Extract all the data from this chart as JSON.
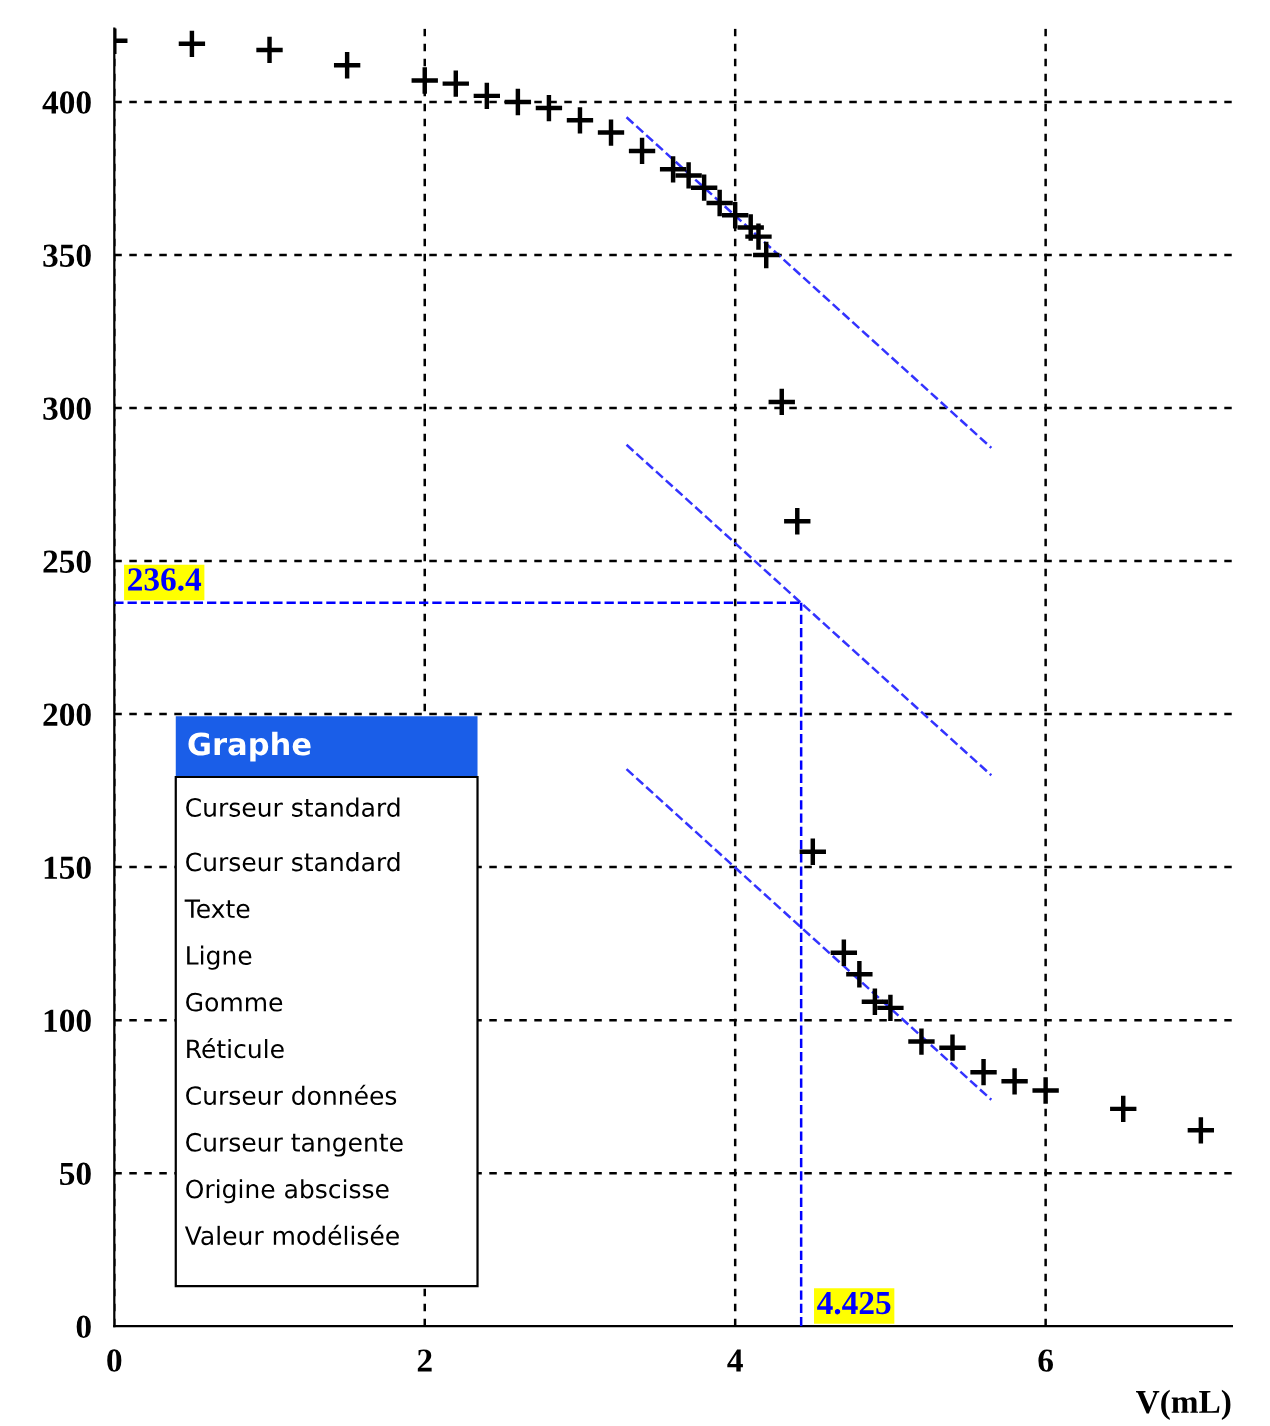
{
  "chart_data": {
    "type": "scatter",
    "xlabel": "V(mL)",
    "series": [
      {
        "color": "#000000",
        "marker": "cross",
        "x": [
          0,
          0.5,
          1,
          1.5,
          2,
          2.2,
          2.4,
          2.6,
          2.8,
          3.0,
          3.2,
          3.4,
          3.6,
          3.7,
          3.8,
          3.9,
          4.0,
          4.1,
          4.15,
          4.2,
          4.3,
          4.4,
          4.5,
          4.7,
          4.8,
          4.9,
          5.0,
          5.2,
          5.4,
          5.6,
          5.8,
          6.0,
          6.5,
          7.0
        ],
        "values": [
          420,
          419,
          417,
          412,
          407,
          406,
          402,
          400,
          398,
          394,
          390,
          384,
          378,
          376,
          372,
          367,
          363,
          359,
          356,
          350,
          302,
          263,
          155,
          122,
          115,
          106,
          104,
          93,
          91,
          83,
          80,
          77,
          71,
          64
        ]
      },
      {
        "type": "line",
        "color": "#3333ff",
        "line_style": "dashed",
        "x": [
          3.3,
          5.65
        ],
        "values": [
          395,
          287
        ]
      },
      {
        "type": "line",
        "color": "#3333ff",
        "line_style": "dashed",
        "x": [
          3.3,
          5.65
        ],
        "values": [
          288,
          180
        ]
      },
      {
        "type": "line",
        "color": "#3333ff",
        "line_style": "dashed",
        "x": [
          3.3,
          5.65
        ],
        "values": [
          182,
          74
        ]
      }
    ],
    "ref_lines": [
      {
        "axis": "y",
        "value": 236.4,
        "label": "236.4",
        "color": "#0000ff",
        "line_style": "dashed"
      },
      {
        "axis": "x",
        "value": 4.425,
        "label": "4.425",
        "color": "#0000ff",
        "line_style": "dashed"
      }
    ],
    "annotations": [
      "Graphe",
      "Curseur standard",
      "Curseur standard",
      "Texte",
      "Ligne",
      "Gomme",
      "Réticule",
      "Curseur données",
      "Curseur tangente",
      "Origine abscisse",
      "Valeur modélisée"
    ],
    "xlim": [
      0,
      7.2
    ],
    "ylim": [
      0,
      424
    ],
    "xticks": [
      0,
      2,
      4,
      6
    ],
    "yticks": [
      0,
      50,
      100,
      150,
      200,
      250,
      300,
      350,
      400
    ],
    "grid": true
  }
}
